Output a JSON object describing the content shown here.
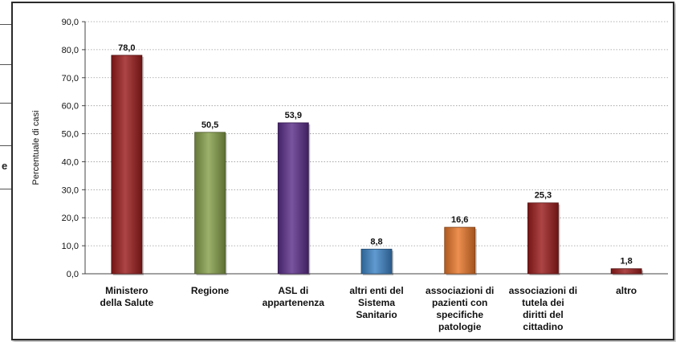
{
  "background_fragment": {
    "letter": "e"
  },
  "chart_data": {
    "type": "bar",
    "ylabel": "Percentuale di casi",
    "xlabel": "",
    "ylim": [
      0,
      90
    ],
    "yticks": [
      0,
      10,
      20,
      30,
      40,
      50,
      60,
      70,
      80,
      90
    ],
    "ytick_labels": [
      "0,0",
      "10,0",
      "20,0",
      "30,0",
      "40,0",
      "50,0",
      "60,0",
      "70,0",
      "80,0",
      "90,0"
    ],
    "grid": "horizontal dotted",
    "legend": "none",
    "categories": [
      [
        "Ministero",
        "della Salute"
      ],
      [
        "Regione"
      ],
      [
        "ASL di",
        "appartenenza"
      ],
      [
        "altri enti del",
        "Sistema",
        "Sanitario"
      ],
      [
        "associazioni di",
        "pazienti con",
        "specifiche",
        "patologie"
      ],
      [
        "associazioni di",
        "tutela dei",
        "diritti del",
        "cittadino"
      ],
      [
        "altro"
      ]
    ],
    "values": [
      78.0,
      50.5,
      53.9,
      8.8,
      16.6,
      25.3,
      1.8
    ],
    "value_labels": [
      "78,0",
      "50,5",
      "53,9",
      "8,8",
      "16,6",
      "25,3",
      "1,8"
    ],
    "colors": [
      "#9b1c1c",
      "#86a04a",
      "#5b2e8a",
      "#3d84c6",
      "#e8762a",
      "#9b1c1c",
      "#9b1c1c"
    ]
  }
}
